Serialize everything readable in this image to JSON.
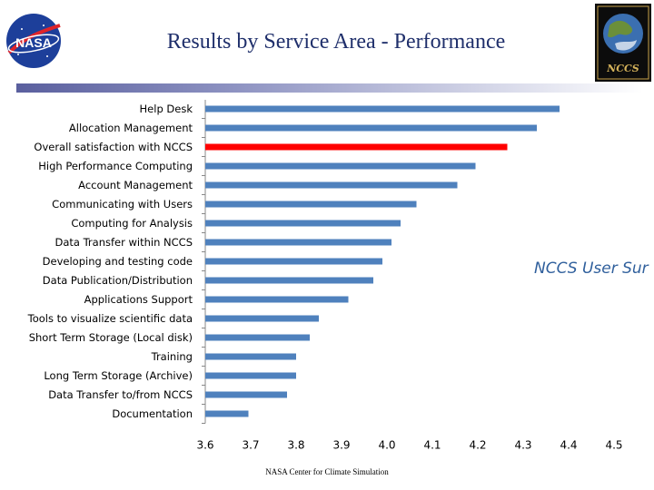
{
  "header": {
    "title": "Results by Service Area - Performance"
  },
  "logos": {
    "nasa_text": "NASA",
    "nccs_text": "NCCS"
  },
  "watermark": "NCCS User Sur",
  "footer": "NASA Center for Climate Simulation",
  "colors": {
    "bar": "#4f81bd",
    "highlight": "#ff0000",
    "title": "#1f2f6b"
  },
  "chart_data": {
    "type": "bar",
    "orientation": "horizontal",
    "title": "",
    "xlabel": "",
    "ylabel": "",
    "xlim": [
      3.6,
      4.5
    ],
    "ticks": [
      "3.6",
      "3.7",
      "3.8",
      "3.9",
      "4.0",
      "4.1",
      "4.2",
      "4.3",
      "4.4",
      "4.5"
    ],
    "categories": [
      "Help Desk",
      "Allocation  Management",
      "Overall satisfaction with NCCS",
      "High Performance Computing",
      "Account  Management",
      "Communicating with Users",
      "Computing for Analysis",
      "Data Transfer  within  NCCS",
      "Developing and testing code",
      "Data Publication/Distribution",
      "Applications Support",
      "Tools to visualize scientific data",
      "Short Term Storage (Local disk)",
      "Training",
      "Long Term Storage (Archive)",
      "Data Transfer to/from  NCCS",
      "Documentation"
    ],
    "values": [
      4.38,
      4.33,
      4.265,
      4.195,
      4.155,
      4.065,
      4.03,
      4.01,
      3.99,
      3.97,
      3.915,
      3.85,
      3.83,
      3.8,
      3.8,
      3.78,
      3.695
    ],
    "highlight_index": 2
  }
}
